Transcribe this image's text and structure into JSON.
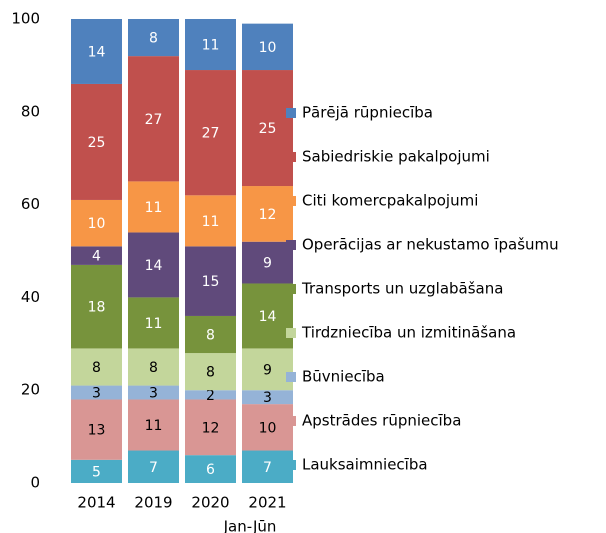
{
  "chart_data": {
    "type": "stacked_bar",
    "categories": [
      "2014",
      "2019",
      "2020",
      "2021"
    ],
    "category_note": "Jan-Jūn",
    "ylim": [
      0,
      100
    ],
    "yticks": [
      0,
      20,
      40,
      60,
      80,
      100
    ],
    "grid": false,
    "legend": "right",
    "series": [
      {
        "name": "Lauksaimniecība",
        "color": "#4bacc6",
        "label_color": "#ffffff",
        "values": [
          5,
          7,
          6,
          7
        ]
      },
      {
        "name": "Apstrādes rūpniecība",
        "color": "#d99694",
        "label_color": "#000000",
        "values": [
          13,
          11,
          12,
          10
        ]
      },
      {
        "name": "Būvniecība",
        "color": "#95b3d7",
        "label_color": "#000000",
        "values": [
          3,
          3,
          2,
          3
        ]
      },
      {
        "name": "Tirdzniecība un izmitināšana",
        "color": "#c3d69b",
        "label_color": "#000000",
        "values": [
          8,
          8,
          8,
          9
        ]
      },
      {
        "name": "Transports un uzglabāšana",
        "color": "#77933c",
        "label_color": "#ffffff",
        "values": [
          18,
          11,
          8,
          14
        ]
      },
      {
        "name": "Operācijas ar nekustamo īpašumu",
        "color": "#604a7b",
        "label_color": "#ffffff",
        "values": [
          4,
          14,
          15,
          9
        ]
      },
      {
        "name": "Citi komercpakalpojumi",
        "color": "#f79646",
        "label_color": "#ffffff",
        "values": [
          10,
          11,
          11,
          12
        ]
      },
      {
        "name": "Sabiedriskie pakalpojumi",
        "color": "#c0504d",
        "label_color": "#ffffff",
        "values": [
          25,
          27,
          27,
          25
        ]
      },
      {
        "name": "Pārējā rūpniecība",
        "color": "#4f81bd",
        "label_color": "#ffffff",
        "values": [
          14,
          8,
          11,
          10
        ]
      }
    ]
  }
}
